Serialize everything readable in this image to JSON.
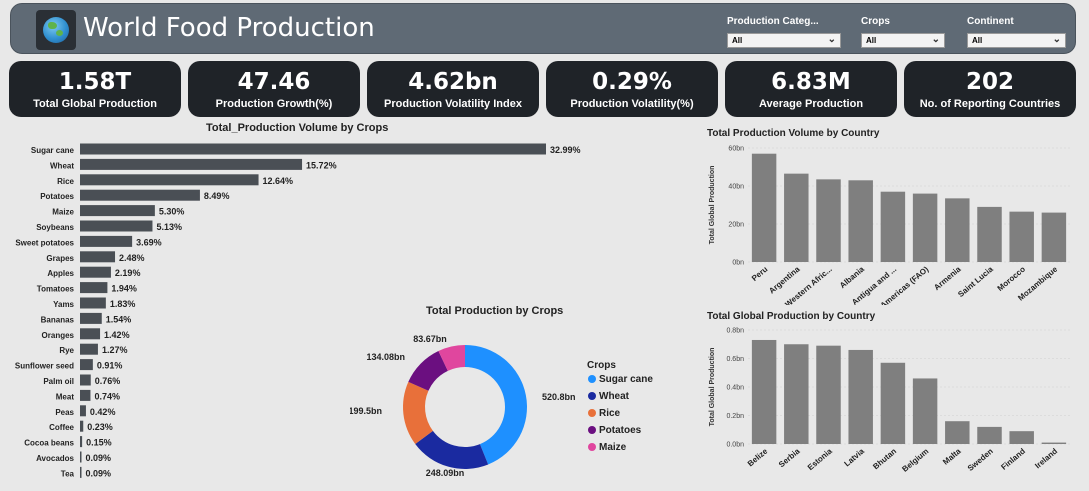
{
  "header": {
    "title": "World Food Production",
    "logo_icon": "globe-icon",
    "slicers": [
      {
        "label": "Production Categ...",
        "value": "All"
      },
      {
        "label": "Crops",
        "value": "All"
      },
      {
        "label": "Continent",
        "value": "All"
      }
    ]
  },
  "kpis": [
    {
      "value": "1.58T",
      "caption": "Total Global Production"
    },
    {
      "value": "47.46",
      "caption": "Production Growth(%)"
    },
    {
      "value": "4.62bn",
      "caption": "Production Volatility Index"
    },
    {
      "value": "0.29%",
      "caption": "Production Volatility(%)"
    },
    {
      "value": "6.83M",
      "caption": "Average Production"
    },
    {
      "value": "202",
      "caption": "No. of Reporting Countries"
    }
  ],
  "chart_data": [
    {
      "type": "bar",
      "orientation": "horizontal",
      "title": "Total_Production Volume by Crops",
      "categories": [
        "Sugar cane",
        "Wheat",
        "Rice",
        "Potatoes",
        "Maize",
        "Soybeans",
        "Sweet potatoes",
        "Grapes",
        "Apples",
        "Tomatoes",
        "Yams",
        "Bananas",
        "Oranges",
        "Rye",
        "Sunflower seed",
        "Palm oil",
        "Meat",
        "Peas",
        "Coffee",
        "Cocoa beans",
        "Avocados",
        "Tea"
      ],
      "values": [
        32.99,
        15.72,
        12.64,
        8.49,
        5.3,
        5.13,
        3.69,
        2.48,
        2.19,
        1.94,
        1.83,
        1.54,
        1.42,
        1.27,
        0.91,
        0.76,
        0.74,
        0.42,
        0.23,
        0.15,
        0.09,
        0.09
      ],
      "labels": [
        "32.99%",
        "15.72%",
        "12.64%",
        "8.49%",
        "5.30%",
        "5.13%",
        "3.69%",
        "2.48%",
        "2.19%",
        "1.94%",
        "1.83%",
        "1.54%",
        "1.42%",
        "1.27%",
        "0.91%",
        "0.76%",
        "0.74%",
        "0.42%",
        "0.23%",
        "0.15%",
        "0.09%",
        "0.09%"
      ],
      "color": "#4a4f55"
    },
    {
      "type": "pie",
      "donut": true,
      "title": "Total Production by Crops",
      "legend_title": "Crops",
      "legend_position": "right",
      "categories": [
        "Sugar cane",
        "Wheat",
        "Rice",
        "Potatoes",
        "Maize"
      ],
      "values": [
        520.8,
        248.09,
        199.5,
        134.08,
        83.67
      ],
      "labels": [
        "520.8bn",
        "248.09bn",
        "199.5bn",
        "134.08bn",
        "83.67bn"
      ],
      "colors": [
        "#1e90ff",
        "#1a2aa0",
        "#e8703a",
        "#6b0f80",
        "#e0469e"
      ]
    },
    {
      "type": "bar",
      "title": "Total Production Volume by Country",
      "ylabel": "Total Global Production",
      "categories": [
        "Peru",
        "Argentina",
        "Western Afric...",
        "Albania",
        "Antigua and ...",
        "Americas (FAO)",
        "Armenia",
        "Saint Lucia",
        "Morocco",
        "Mozambique"
      ],
      "values": [
        57,
        46.5,
        43.5,
        43,
        37,
        36,
        33.5,
        29,
        26.5,
        26
      ],
      "ylim": [
        0,
        60
      ],
      "yticks": [
        0,
        20,
        40,
        60
      ],
      "ytick_labels": [
        "0bn",
        "20bn",
        "40bn",
        "60bn"
      ],
      "color": "#7f7f7f"
    },
    {
      "type": "bar",
      "title": "Total Global Production by Country",
      "ylabel": "Total Global Production",
      "categories": [
        "Belize",
        "Serbia",
        "Estonia",
        "Latvia",
        "Bhutan",
        "Belgium",
        "Malta",
        "Sweden",
        "Finland",
        "Ireland"
      ],
      "values": [
        0.73,
        0.7,
        0.69,
        0.66,
        0.57,
        0.46,
        0.16,
        0.12,
        0.09,
        0.01
      ],
      "ylim": [
        0,
        0.8
      ],
      "yticks": [
        0,
        0.2,
        0.4,
        0.6,
        0.8
      ],
      "ytick_labels": [
        "0.0bn",
        "0.2bn",
        "0.4bn",
        "0.6bn",
        "0.8bn"
      ],
      "color": "#7f7f7f"
    }
  ]
}
